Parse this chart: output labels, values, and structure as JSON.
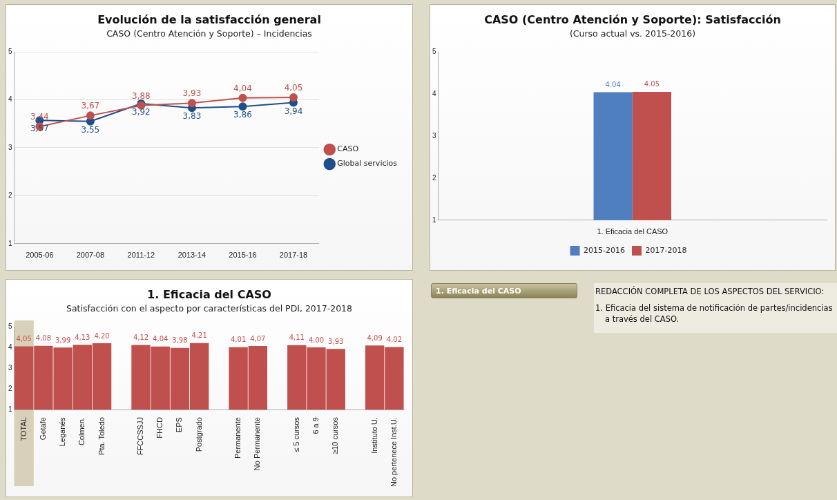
{
  "chart_data": [
    {
      "type": "line",
      "title": "Evolución de la satisfacción general",
      "subtitle": "CASO (Centro Atención y Soporte) – Incidencias",
      "categories": [
        "2005-06",
        "2007-08",
        "2011-12",
        "2013-14",
        "2015-16",
        "2017-18"
      ],
      "series": [
        {
          "name": "CASO",
          "color": "#c0504d",
          "values": [
            3.44,
            3.67,
            3.88,
            3.93,
            4.04,
            4.05
          ],
          "value_labels": [
            "3,44",
            "3,67",
            "3,88",
            "3,93",
            "4,04",
            "4,05"
          ]
        },
        {
          "name": "Global servicios",
          "color": "#1f4e89",
          "values": [
            3.57,
            3.55,
            3.92,
            3.83,
            3.86,
            3.94
          ],
          "value_labels": [
            "3,57",
            "3,55",
            "3,92",
            "3,83",
            "3,86",
            "3,94"
          ]
        }
      ],
      "ylim": [
        1,
        5
      ],
      "yticks": [
        1,
        2,
        3,
        4,
        5
      ],
      "grid": "y",
      "legend": "right",
      "marker": "circle",
      "line_style": "solid"
    },
    {
      "type": "bar",
      "title": "CASO (Centro Atención y Soporte): Satisfacción",
      "subtitle": "(Curso actual vs. 2015-2016)",
      "categories": [
        "1. Eficacia del CASO"
      ],
      "series": [
        {
          "name": "2015-2016",
          "color": "#4f7fbf",
          "values": [
            4.04
          ]
        },
        {
          "name": "2017-2018",
          "color": "#c0504d",
          "values": [
            4.05
          ]
        }
      ],
      "ylim": [
        1,
        5
      ],
      "yticks": [
        1,
        2,
        3,
        4,
        5
      ],
      "grid": false,
      "legend": "bottom",
      "data_labels": true
    },
    {
      "type": "bar",
      "title": "1. Eficacia del CASO",
      "subtitle": "Satisfacción con el aspecto por características del PDI, 2017-2018",
      "categories": [
        "TOTAL",
        "Getafe",
        "Leganés",
        "Colmen.",
        "Pta. Toledo",
        null,
        "FFCCSSJJ",
        "FHCD",
        "EPS",
        "Postgrado",
        null,
        "Permanente",
        "No Permanente",
        null,
        "≤ 5 cursos",
        "6 a 9",
        "≥10 cursos",
        null,
        "Instituto U.",
        "No pertenece Inst.U."
      ],
      "values": [
        4.05,
        4.08,
        3.99,
        4.13,
        4.2,
        null,
        4.12,
        4.04,
        3.98,
        4.21,
        null,
        4.01,
        4.07,
        null,
        4.11,
        4.0,
        3.93,
        null,
        4.09,
        4.02
      ],
      "value_labels": [
        "4,05",
        "4,08",
        "3,99",
        "4,13",
        "4,20",
        null,
        "4,12",
        "4,04",
        "3,98",
        "4,21",
        null,
        "4,01",
        "4,07",
        null,
        "4,11",
        "4,00",
        "3,93",
        null,
        "4,09",
        "4,02"
      ],
      "color": "#c0504d",
      "ylim": [
        1,
        5
      ],
      "yticks": [
        1,
        2,
        3,
        4,
        5
      ],
      "grid": false,
      "bands": [
        {
          "axis": "x",
          "from": "TOTAL",
          "to": "TOTAL",
          "color": "#d8d0b8"
        }
      ]
    },
    {
      "type": "other",
      "annotations": [
        "1. Eficacia del CASO",
        "REDACCIÓN COMPLETA DE LOS ASPECTOS DEL SERVICIO:",
        "1. Eficacia del sistema de notificación de partes/incidencias a través del CASO."
      ]
    }
  ]
}
